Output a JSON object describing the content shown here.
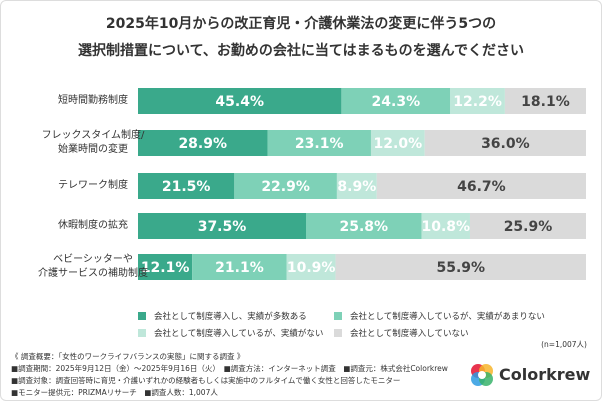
{
  "chart_data": {
    "type": "bar",
    "orientation": "horizontal",
    "stacked": true,
    "title": "2025年10月からの改正育児・介護休業法の変更に伴う5つの\n選択制措置について、お勤めの会社に当てはまるものを選んでください",
    "categories": [
      "短時間勤務制度",
      "フレックスタイム制度/\n始業時間の変更",
      "テレワーク制度",
      "休暇制度の拡充",
      "ベビーシッターや\n介護サービスの補助制度"
    ],
    "series": [
      {
        "name": "会社として制度導入し、実績が多数ある",
        "color": "#3aa98b",
        "values": [
          45.4,
          28.9,
          21.5,
          37.5,
          12.1
        ],
        "value_labels": [
          "45.4%",
          "28.9%",
          "21.5%",
          "37.5%",
          "12.1%"
        ]
      },
      {
        "name": "会社として制度導入しているが、実績があまりない",
        "color": "#7ed1b7",
        "values": [
          24.3,
          23.1,
          22.9,
          25.8,
          21.1
        ],
        "value_labels": [
          "24.3%",
          "23.1%",
          "22.9%",
          "25.8%",
          "21.1%"
        ]
      },
      {
        "name": "会社として制度導入しているが、実績がない",
        "color": "#bfe7da",
        "values": [
          12.2,
          12.0,
          8.9,
          10.8,
          10.9
        ],
        "value_labels": [
          "12.2%",
          "12.0%",
          "8.9%",
          "10.8%",
          "10.9%"
        ]
      },
      {
        "name": "会社として制度導入していない",
        "color": "#dadada",
        "values": [
          18.1,
          36.0,
          46.7,
          25.9,
          55.9
        ],
        "value_labels": [
          "18.1%",
          "36.0%",
          "46.7%",
          "25.9%",
          "55.9%"
        ]
      }
    ],
    "xlim": [
      0,
      100
    ],
    "legend": "bottom",
    "sample_note": "(n=1,007人)"
  },
  "notes": {
    "heading": "《 調査概要：「女性のワークライフバランスの実態」に関する調査 》",
    "period": "■調査期間：2025年9月12日（金）～2025年9月16日（火）",
    "method": "■調査方法：インターネット調査",
    "source": "■調査元：株式会社Colorkrew",
    "target": "■調査対象：調査回答時に育児・介護いずれかの経験者もしくは実施中のフルタイムで働く女性と回答したモニター",
    "provider": "■モニター提供元：PRIZMAリサーチ",
    "count": "■調査人数：1,007人"
  },
  "logo": "Colorkrew"
}
